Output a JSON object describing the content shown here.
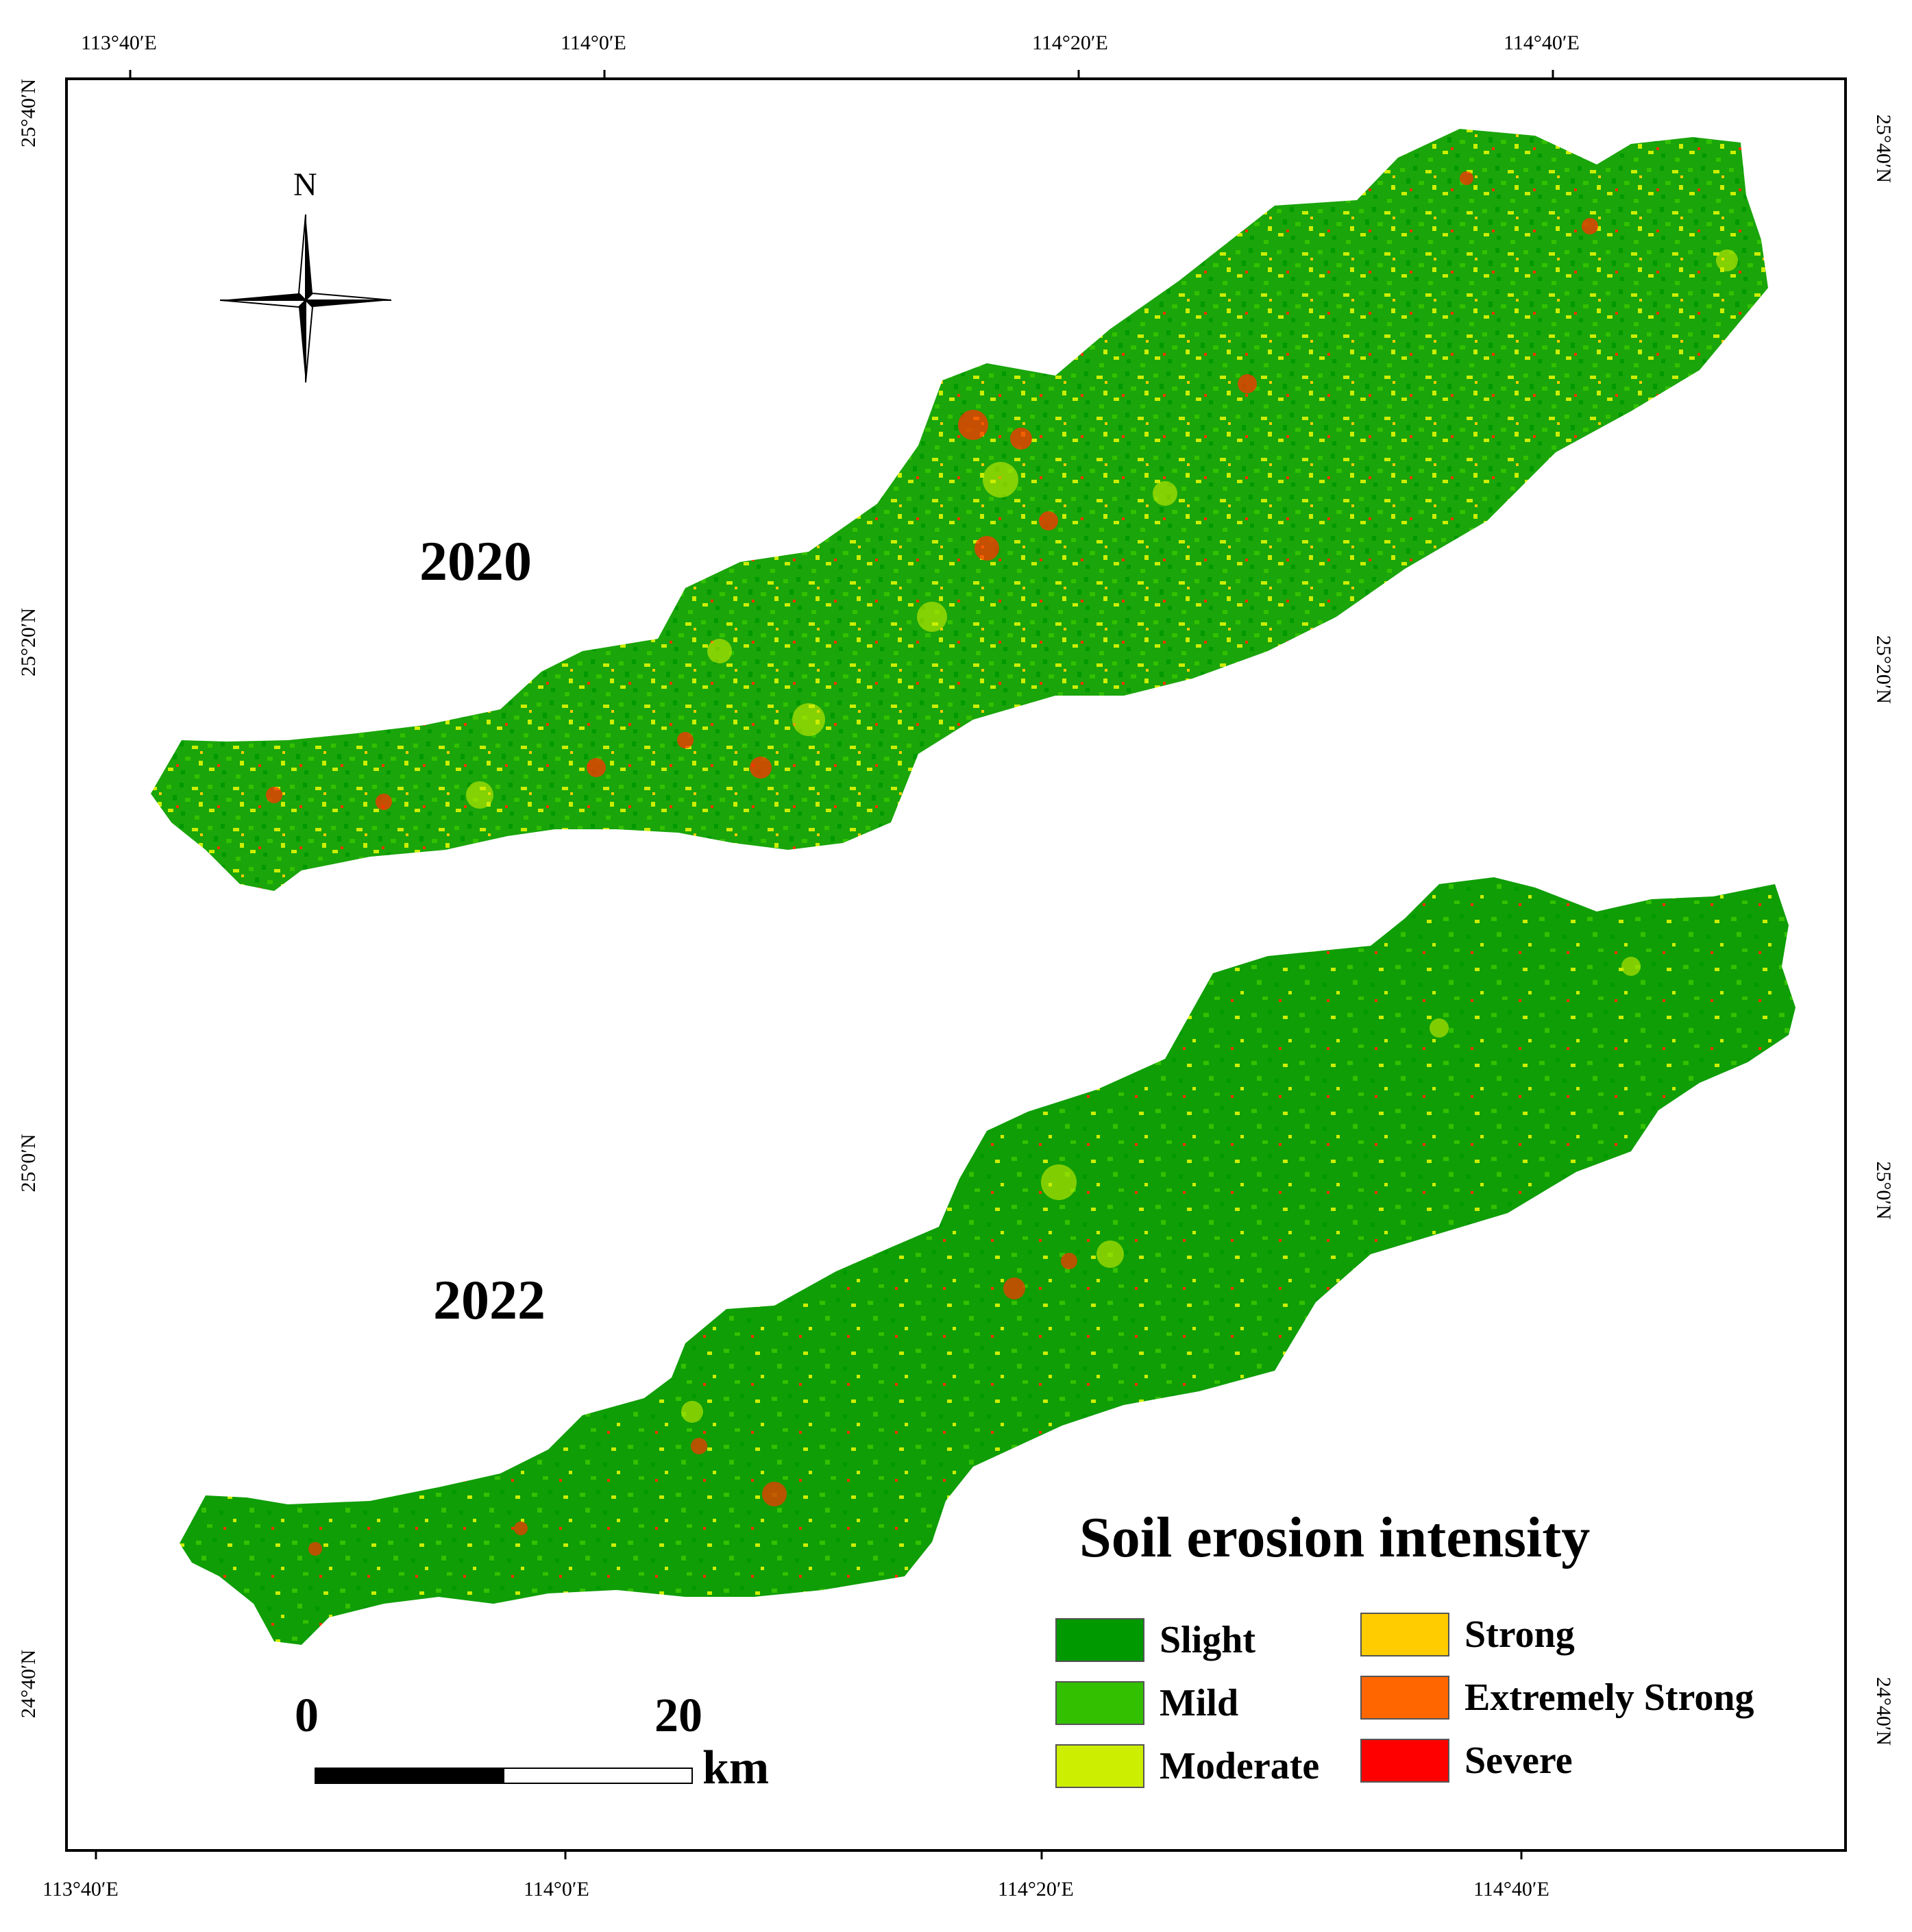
{
  "map": {
    "ticks_top": [
      "113°40′E",
      "114°0′E",
      "114°20′E",
      "114°40′E"
    ],
    "ticks_bottom": [
      "113°40′E",
      "114°0′E",
      "114°20′E",
      "114°40′E"
    ],
    "ticks_left": [
      "25°40′N",
      "25°20′N",
      "25°0′N",
      "24°40′N"
    ],
    "ticks_right": [
      "25°40′N",
      "25°20′N",
      "25°0′N",
      "24°40′N"
    ],
    "north_label": "N",
    "panels": [
      {
        "year": "2020"
      },
      {
        "year": "2022"
      }
    ]
  },
  "legend": {
    "title": "Soil erosion intensity",
    "items": [
      {
        "label": "Slight",
        "color": "#009900"
      },
      {
        "label": "Mild",
        "color": "#33c000"
      },
      {
        "label": "Moderate",
        "color": "#ccee00"
      },
      {
        "label": "Strong",
        "color": "#ffcc00"
      },
      {
        "label": "Extremely Strong",
        "color": "#ff6600"
      },
      {
        "label": "Severe",
        "color": "#ff0000"
      }
    ]
  },
  "scale_bar": {
    "start": "0",
    "end": "20",
    "unit": "km"
  }
}
